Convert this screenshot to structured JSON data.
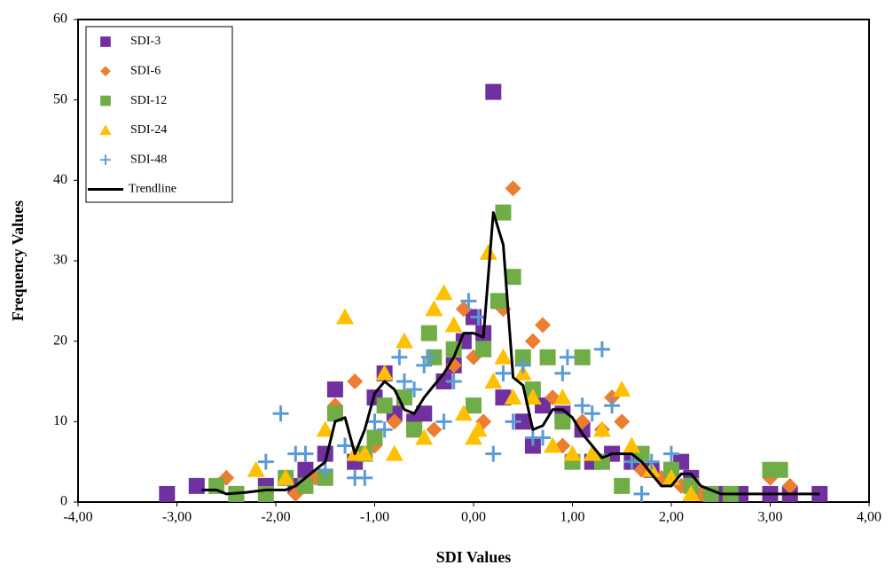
{
  "chart_data": {
    "type": "scatter",
    "x_label": "SDI Values",
    "y_label": "Frequency Values",
    "xlim": [
      -4,
      4
    ],
    "ylim": [
      0,
      60
    ],
    "xticks": [
      {
        "value": -4,
        "label": "-4,00"
      },
      {
        "value": -3,
        "label": "-3,00"
      },
      {
        "value": -2,
        "label": "-2,00"
      },
      {
        "value": -1,
        "label": "-1,00"
      },
      {
        "value": 0,
        "label": "0,00"
      },
      {
        "value": 1,
        "label": "1,00"
      },
      {
        "value": 2,
        "label": "2,00"
      },
      {
        "value": 3,
        "label": "3,00"
      },
      {
        "value": 4,
        "label": "4,00"
      }
    ],
    "yticks": [
      0,
      10,
      20,
      30,
      40,
      50,
      60
    ],
    "legend": "upper-left",
    "grid": false,
    "series": [
      {
        "name": "SDI-3",
        "color": "#7030a0",
        "marker": "square",
        "x": [
          -3.1,
          -2.8,
          -2.4,
          -2.1,
          -1.8,
          -1.7,
          -1.5,
          -1.4,
          -1.2,
          -1.0,
          -0.9,
          -0.8,
          -0.6,
          -0.5,
          -0.3,
          -0.2,
          -0.1,
          0,
          0.1,
          0.2,
          0.3,
          0.5,
          0.6,
          0.7,
          0.9,
          1.1,
          1.2,
          1.4,
          1.6,
          1.8,
          2.0,
          2.1,
          2.2,
          2.5,
          2.7,
          3.0,
          3.2,
          3.5
        ],
        "values": [
          1,
          2,
          1,
          2,
          2,
          4,
          6,
          14,
          5,
          13,
          16,
          11,
          10,
          11,
          15,
          17,
          20,
          23,
          21,
          51,
          13,
          10,
          7,
          12,
          11,
          9,
          5,
          6,
          5,
          4,
          4,
          5,
          3,
          1,
          1,
          1,
          1,
          1
        ]
      },
      {
        "name": "SDI-6",
        "color": "#ed7d31",
        "marker": "diamond",
        "x": [
          -2.5,
          -2.1,
          -1.8,
          -1.6,
          -1.4,
          -1.2,
          -1.0,
          -0.8,
          -0.6,
          -0.4,
          -0.2,
          -0.1,
          0,
          0.1,
          0.3,
          0.4,
          0.6,
          0.7,
          0.8,
          0.9,
          1.1,
          1.3,
          1.4,
          1.5,
          1.7,
          1.9,
          2.1,
          2.3,
          2.6,
          3.0,
          3.2
        ],
        "values": [
          3,
          1,
          1,
          3,
          12,
          15,
          7,
          10,
          9,
          9,
          17,
          24,
          18,
          10,
          24,
          39,
          20,
          22,
          13,
          7,
          10,
          9,
          13,
          10,
          4,
          3,
          2,
          1,
          1,
          3,
          2
        ]
      },
      {
        "name": "SDI-12",
        "color": "#70ad47",
        "marker": "square",
        "x": [
          -2.6,
          -2.4,
          -2.1,
          -1.9,
          -1.7,
          -1.5,
          -1.4,
          -1.1,
          -1.0,
          -0.9,
          -0.7,
          -0.6,
          -0.45,
          -0.4,
          -0.2,
          0,
          0.1,
          0.25,
          0.3,
          0.4,
          0.5,
          0.6,
          0.75,
          0.9,
          1.0,
          1.1,
          1.3,
          1.5,
          1.7,
          2.0,
          2.2,
          2.4,
          2.6,
          3.0,
          3.1
        ],
        "values": [
          2,
          1,
          1,
          3,
          2,
          3,
          11,
          6,
          8,
          12,
          13,
          9,
          21,
          18,
          19,
          12,
          19,
          25,
          36,
          28,
          18,
          14,
          18,
          10,
          5,
          18,
          5,
          2,
          6,
          4,
          2,
          1,
          1,
          4,
          4
        ]
      },
      {
        "name": "SDI-24",
        "color": "#ffc000",
        "marker": "triangle",
        "x": [
          -2.2,
          -1.9,
          -1.5,
          -1.3,
          -1.2,
          -1.1,
          -0.9,
          -0.8,
          -0.7,
          -0.5,
          -0.4,
          -0.3,
          -0.2,
          -0.1,
          0,
          0.05,
          0.15,
          0.2,
          0.3,
          0.4,
          0.5,
          0.6,
          0.8,
          0.9,
          1.0,
          1.2,
          1.3,
          1.5,
          1.6,
          1.8,
          2.0,
          2.2
        ],
        "values": [
          4,
          3,
          9,
          23,
          6,
          6,
          16,
          6,
          20,
          8,
          24,
          26,
          22,
          11,
          8,
          9,
          31,
          15,
          18,
          13,
          16,
          13,
          7,
          13,
          6,
          6,
          9,
          14,
          7,
          4,
          3,
          1
        ]
      },
      {
        "name": "SDI-48",
        "color": "#5b9bd5",
        "marker": "plus",
        "x": [
          -2.1,
          -1.95,
          -1.8,
          -1.7,
          -1.5,
          -1.3,
          -1.2,
          -1.1,
          -1.0,
          -0.9,
          -0.75,
          -0.7,
          -0.6,
          -0.5,
          -0.45,
          -0.3,
          -0.2,
          -0.05,
          0.05,
          0.2,
          0.3,
          0.4,
          0.5,
          0.6,
          0.7,
          0.9,
          0.95,
          1.1,
          1.2,
          1.3,
          1.4,
          1.6,
          1.7,
          1.8,
          2.0
        ],
        "values": [
          5,
          11,
          6,
          6,
          4,
          7,
          3,
          3,
          10,
          9,
          18,
          15,
          14,
          17,
          18,
          10,
          15,
          25,
          23,
          6,
          16,
          10,
          17,
          8,
          8,
          16,
          18,
          12,
          11,
          19,
          12,
          5,
          1,
          5,
          6
        ]
      },
      {
        "name": "Trendline",
        "color": "#000000",
        "marker": "line",
        "x": [
          -2.75,
          -2.6,
          -2.5,
          -2.3,
          -2.1,
          -1.9,
          -1.8,
          -1.7,
          -1.5,
          -1.4,
          -1.3,
          -1.2,
          -1.1,
          -1.0,
          -0.9,
          -0.8,
          -0.7,
          -0.6,
          -0.5,
          -0.4,
          -0.3,
          -0.2,
          -0.1,
          0,
          0.1,
          0.2,
          0.3,
          0.4,
          0.5,
          0.6,
          0.7,
          0.8,
          0.9,
          1.0,
          1.1,
          1.2,
          1.3,
          1.4,
          1.6,
          1.7,
          1.8,
          1.9,
          2.0,
          2.1,
          2.2,
          2.3,
          2.5,
          2.8,
          3.2,
          3.5
        ],
        "values": [
          1.5,
          1.5,
          1,
          1.2,
          1.5,
          1.5,
          2,
          3,
          5,
          10,
          10.5,
          6,
          9,
          13.5,
          15,
          14,
          11.5,
          11,
          13,
          14.5,
          16,
          18,
          21,
          21,
          20.5,
          36,
          32,
          15.5,
          14.5,
          9,
          9.5,
          11.5,
          11.5,
          10.5,
          8.5,
          7,
          5.5,
          6,
          6,
          5,
          3.5,
          2,
          2,
          3.5,
          3.5,
          2,
          1,
          1,
          1,
          1
        ]
      }
    ]
  }
}
